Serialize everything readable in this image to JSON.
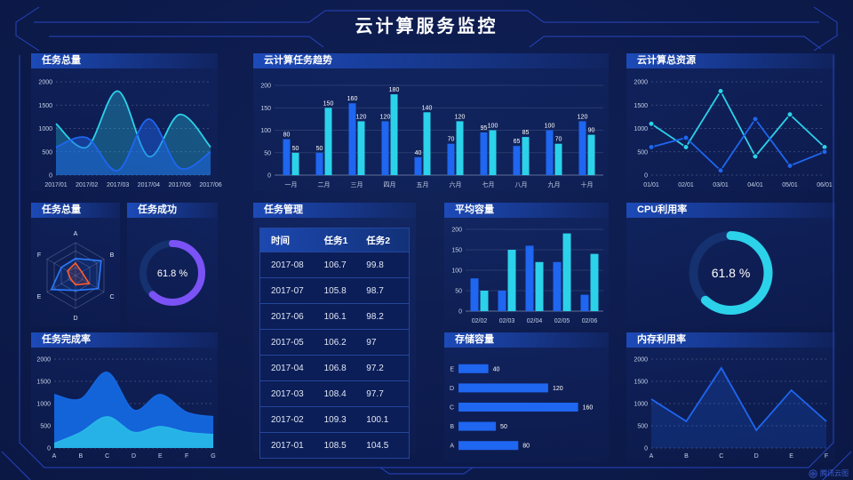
{
  "header": {
    "title": "云计算服务监控"
  },
  "watermark": {
    "label": "腾讯云图"
  },
  "colors": {
    "background": "#0d1b4d",
    "frame": "#2b49cc",
    "panelHeader": "#1c4ab8",
    "blue": "#1f66f0",
    "cyan": "#2bd2ea",
    "purple": "#7b52f5",
    "orange": "#ff5a2a",
    "radarBlue": "#2b7bff",
    "donutTrack": "#15316f",
    "axisText": "#c6d1e8",
    "areaBlue": "#1467e0",
    "areaCyan": "#27b6e8"
  },
  "panels": {
    "taskTotalArea": {
      "title": "任务总量"
    },
    "taskTrendBar": {
      "title": "云计算任务趋势"
    },
    "totalResource": {
      "title": "云计算总资源"
    },
    "taskRadar": {
      "title": "任务总量"
    },
    "taskSuccess": {
      "title": "任务成功"
    },
    "taskTable": {
      "title": "任务管理"
    },
    "avgCapacity": {
      "title": "平均容量"
    },
    "cpu": {
      "title": "CPU利用率"
    },
    "completion": {
      "title": "任务完成率"
    },
    "storage": {
      "title": "存储容量"
    },
    "memory": {
      "title": "内存利用率"
    }
  },
  "chart_data": [
    {
      "id": "task_total",
      "type": "area",
      "title": "任务总量",
      "smooth": true,
      "grid": "dashed",
      "x": [
        "2017/01",
        "2017/02",
        "2017/03",
        "2017/04",
        "2017/05",
        "2017/06"
      ],
      "series": [
        {
          "name": "cyan-series",
          "color": "cyan",
          "values": [
            1100,
            600,
            1800,
            400,
            1300,
            600
          ]
        },
        {
          "name": "blue-series",
          "color": "blue",
          "values": [
            600,
            800,
            100,
            1200,
            150,
            500
          ]
        }
      ],
      "ylim": [
        0,
        2000
      ],
      "yticks": [
        0,
        500,
        1000,
        1500,
        2000
      ]
    },
    {
      "id": "task_trend",
      "type": "bar",
      "title": "云计算任务趋势",
      "labels": true,
      "categories": [
        "一月",
        "二月",
        "三月",
        "四月",
        "五月",
        "六月",
        "七月",
        "八月",
        "九月",
        "十月"
      ],
      "series": [
        {
          "name": "blue-series",
          "color": "blue",
          "values": [
            80,
            50,
            160,
            120,
            40,
            70,
            95,
            65,
            100,
            120
          ]
        },
        {
          "name": "cyan-series",
          "color": "cyan",
          "values": [
            50,
            150,
            120,
            180,
            140,
            120,
            100,
            85,
            70,
            90
          ]
        }
      ],
      "ylim": [
        0,
        200
      ],
      "yticks": [
        0,
        50,
        100,
        150,
        200
      ]
    },
    {
      "id": "total_resource",
      "type": "line",
      "title": "云计算总资源",
      "markers": true,
      "grid": "dashed",
      "x": [
        "01/01",
        "02/01",
        "03/01",
        "04/01",
        "05/01",
        "06/01"
      ],
      "series": [
        {
          "name": "cyan-series",
          "color": "cyan",
          "values": [
            1100,
            600,
            1800,
            400,
            1300,
            600
          ]
        },
        {
          "name": "blue-series",
          "color": "blue",
          "values": [
            600,
            800,
            100,
            1200,
            200,
            500
          ]
        }
      ],
      "ylim": [
        0,
        2000
      ],
      "yticks": [
        0,
        500,
        1000,
        1500,
        2000
      ]
    },
    {
      "id": "task_radar",
      "type": "radar",
      "title": "任务总量",
      "max": 100,
      "indicators": [
        "A",
        "B",
        "C",
        "D",
        "E",
        "F"
      ],
      "series": [
        {
          "name": "blue-polygon",
          "color": "radarBlue",
          "values": [
            52,
            90,
            80,
            45,
            85,
            50
          ]
        },
        {
          "name": "orange-polygon",
          "color": "orange",
          "values": [
            38,
            22,
            48,
            28,
            18,
            28
          ]
        }
      ]
    },
    {
      "id": "task_success",
      "type": "donut",
      "title": "任务成功",
      "percent": 61.8,
      "label": "61.8 %",
      "color": "purple"
    },
    {
      "id": "task_table",
      "type": "table",
      "title": "任务管理",
      "columns": [
        "时间",
        "任务1",
        "任务2"
      ],
      "rows": [
        [
          "2017-08",
          "106.7",
          "99.8"
        ],
        [
          "2017-07",
          "105.8",
          "98.7"
        ],
        [
          "2017-06",
          "106.1",
          "98.2"
        ],
        [
          "2017-05",
          "106.2",
          "97"
        ],
        [
          "2017-04",
          "106.8",
          "97.2"
        ],
        [
          "2017-03",
          "108.4",
          "97.7"
        ],
        [
          "2017-02",
          "109.3",
          "100.1"
        ],
        [
          "2017-01",
          "108.5",
          "104.5"
        ]
      ]
    },
    {
      "id": "avg_capacity",
      "type": "bar",
      "title": "平均容量",
      "labels": false,
      "categories": [
        "02/02",
        "02/03",
        "02/04",
        "02/05",
        "02/06"
      ],
      "series": [
        {
          "name": "blue-series",
          "color": "blue",
          "values": [
            80,
            50,
            160,
            120,
            40
          ]
        },
        {
          "name": "cyan-series",
          "color": "cyan",
          "values": [
            50,
            150,
            120,
            190,
            140
          ]
        }
      ],
      "ylim": [
        0,
        200
      ],
      "yticks": [
        0,
        50,
        100,
        150,
        200
      ]
    },
    {
      "id": "cpu",
      "type": "donut",
      "title": "CPU利用率",
      "percent": 61.8,
      "label": "61.8 %",
      "color": "cyan"
    },
    {
      "id": "completion",
      "type": "area",
      "title": "任务完成率",
      "smooth": true,
      "grid": "dashed",
      "x": [
        "A",
        "B",
        "C",
        "D",
        "E",
        "F",
        "G"
      ],
      "series": [
        {
          "name": "blue-area",
          "color": "areaBlue",
          "values": [
            1200,
            1100,
            1700,
            850,
            1200,
            800,
            700
          ]
        },
        {
          "name": "cyan-area",
          "color": "areaCyan",
          "values": [
            100,
            350,
            700,
            350,
            480,
            350,
            300
          ]
        }
      ],
      "ylim": [
        0,
        2000
      ],
      "yticks": [
        0,
        500,
        1000,
        1500,
        2000
      ]
    },
    {
      "id": "storage",
      "type": "hbar",
      "title": "存储容量",
      "categories": [
        "E",
        "D",
        "C",
        "B",
        "A"
      ],
      "values": [
        40,
        120,
        160,
        50,
        80
      ],
      "xmax": 170
    },
    {
      "id": "memory",
      "type": "line",
      "title": "内存利用率",
      "grid": "dashed",
      "x": [
        "A",
        "B",
        "C",
        "D",
        "E",
        "F"
      ],
      "series": [
        {
          "name": "blue-series",
          "color": "blue",
          "values": [
            1100,
            600,
            1800,
            400,
            1300,
            600
          ]
        }
      ],
      "ylim": [
        0,
        2000
      ],
      "yticks": [
        0,
        500,
        1000,
        1500,
        2000
      ]
    }
  ]
}
